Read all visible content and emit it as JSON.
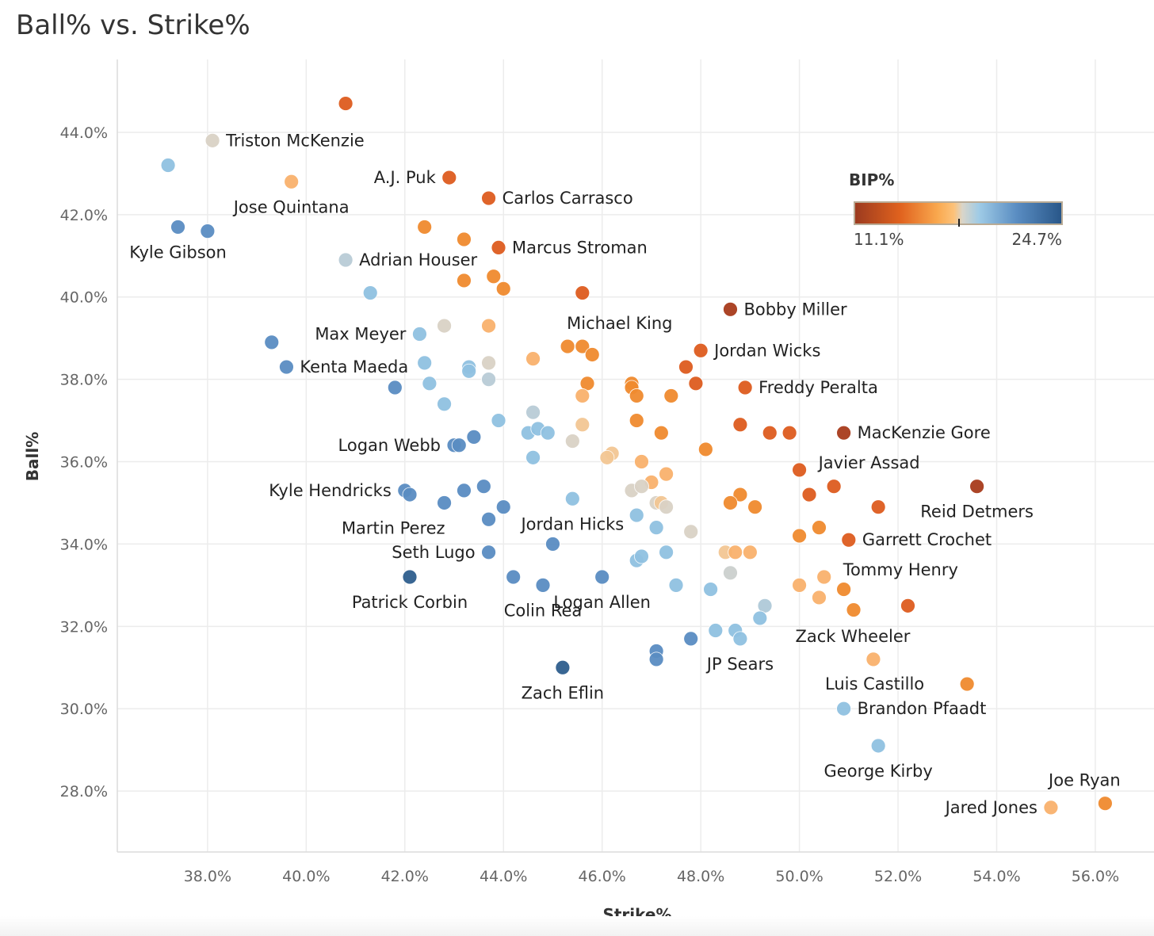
{
  "chart_data": {
    "type": "scatter",
    "title": "Ball% vs. Strike%",
    "xlabel": "Strike%",
    "ylabel": "Ball%",
    "xlim": [
      36.17,
      57.19
    ],
    "ylim": [
      26.52,
      45.77
    ],
    "xticks": [
      38,
      40,
      42,
      44,
      46,
      48,
      50,
      52,
      54,
      56
    ],
    "xtick_labels": [
      "38.0%",
      "40.0%",
      "42.0%",
      "44.0%",
      "46.0%",
      "48.0%",
      "50.0%",
      "52.0%",
      "54.0%",
      "56.0%"
    ],
    "yticks": [
      28,
      30,
      32,
      34,
      36,
      38,
      40,
      42,
      44
    ],
    "ytick_labels": [
      "28.0%",
      "30.0%",
      "32.0%",
      "34.0%",
      "36.0%",
      "38.0%",
      "40.0%",
      "42.0%",
      "44.0%"
    ],
    "grid": true,
    "color_legend": {
      "title": "BIP%",
      "min": 11.1,
      "max": 24.7,
      "min_label": "11.1%",
      "max_label": "24.7%",
      "placement": "top-right",
      "colors": [
        "#9b3a1f",
        "#dd5a1e",
        "#f08a2e",
        "#f9b06a",
        "#d8d3c9",
        "#92c3e2",
        "#5b8ec3",
        "#285688"
      ]
    },
    "points": [
      {
        "x": 40.8,
        "y": 44.7,
        "bip": 13.6
      },
      {
        "x": 38.1,
        "y": 43.8,
        "bip": 18.0,
        "label": "Triston McKenzie",
        "label_pos": "right"
      },
      {
        "x": 37.2,
        "y": 43.2,
        "bip": 19.6
      },
      {
        "x": 39.7,
        "y": 42.8,
        "bip": 16.6,
        "label": "Jose Quintana",
        "label_pos": "below"
      },
      {
        "x": 42.9,
        "y": 42.9,
        "bip": 13.6,
        "label": "A.J. Puk",
        "label_pos": "left"
      },
      {
        "x": 43.7,
        "y": 42.4,
        "bip": 13.6,
        "label": "Carlos Carrasco",
        "label_pos": "right"
      },
      {
        "x": 37.4,
        "y": 41.7,
        "bip": 21.6,
        "label": "Kyle Gibson",
        "label_pos": "below"
      },
      {
        "x": 38.0,
        "y": 41.6,
        "bip": 21.6
      },
      {
        "x": 42.4,
        "y": 41.7,
        "bip": 15.2
      },
      {
        "x": 43.2,
        "y": 41.4,
        "bip": 15.2
      },
      {
        "x": 43.9,
        "y": 41.2,
        "bip": 13.6,
        "label": "Marcus Stroman",
        "label_pos": "right"
      },
      {
        "x": 40.8,
        "y": 40.9,
        "bip": 18.7,
        "label": "Adrian Houser",
        "label_pos": "right"
      },
      {
        "x": 43.2,
        "y": 40.4,
        "bip": 15.2
      },
      {
        "x": 43.8,
        "y": 40.5,
        "bip": 15.2
      },
      {
        "x": 44.0,
        "y": 40.2,
        "bip": 15.2
      },
      {
        "x": 45.6,
        "y": 40.1,
        "bip": 13.6
      },
      {
        "x": 41.3,
        "y": 40.1,
        "bip": 19.6
      },
      {
        "x": 48.6,
        "y": 39.7,
        "bip": 12.0,
        "label": "Bobby Miller",
        "label_pos": "right"
      },
      {
        "x": 42.8,
        "y": 39.3,
        "bip": 18.0
      },
      {
        "x": 43.7,
        "y": 39.3,
        "bip": 16.6
      },
      {
        "x": 42.3,
        "y": 39.1,
        "bip": 19.6,
        "label": "Max Meyer",
        "label_pos": "left"
      },
      {
        "x": 39.3,
        "y": 38.9,
        "bip": 21.6
      },
      {
        "x": 45.3,
        "y": 38.8,
        "bip": 15.2
      },
      {
        "x": 45.6,
        "y": 38.8,
        "bip": 15.2,
        "label": "Michael King",
        "label_pos": "above-right"
      },
      {
        "x": 45.8,
        "y": 38.6,
        "bip": 15.2
      },
      {
        "x": 48.0,
        "y": 38.7,
        "bip": 13.6,
        "label": "Jordan Wicks",
        "label_pos": "right"
      },
      {
        "x": 39.6,
        "y": 38.3,
        "bip": 21.6,
        "label": "Kenta Maeda",
        "label_pos": "right"
      },
      {
        "x": 42.4,
        "y": 38.4,
        "bip": 19.6
      },
      {
        "x": 43.3,
        "y": 38.3,
        "bip": 19.6
      },
      {
        "x": 43.3,
        "y": 38.2,
        "bip": 19.6
      },
      {
        "x": 43.7,
        "y": 38.4,
        "bip": 18.0
      },
      {
        "x": 44.6,
        "y": 38.5,
        "bip": 16.6
      },
      {
        "x": 47.7,
        "y": 38.3,
        "bip": 13.6
      },
      {
        "x": 47.9,
        "y": 37.9,
        "bip": 13.6
      },
      {
        "x": 48.9,
        "y": 37.8,
        "bip": 13.6,
        "label": "Freddy Peralta",
        "label_pos": "right"
      },
      {
        "x": 41.8,
        "y": 37.8,
        "bip": 21.6
      },
      {
        "x": 42.5,
        "y": 37.9,
        "bip": 19.6
      },
      {
        "x": 43.7,
        "y": 38.0,
        "bip": 18.7
      },
      {
        "x": 45.7,
        "y": 37.9,
        "bip": 15.2
      },
      {
        "x": 46.6,
        "y": 37.9,
        "bip": 15.2
      },
      {
        "x": 46.6,
        "y": 37.8,
        "bip": 15.2
      },
      {
        "x": 46.7,
        "y": 37.6,
        "bip": 15.2
      },
      {
        "x": 45.6,
        "y": 37.6,
        "bip": 16.6
      },
      {
        "x": 47.4,
        "y": 37.6,
        "bip": 15.2
      },
      {
        "x": 42.8,
        "y": 37.4,
        "bip": 19.6
      },
      {
        "x": 44.6,
        "y": 37.2,
        "bip": 18.7
      },
      {
        "x": 46.7,
        "y": 37.0,
        "bip": 15.2
      },
      {
        "x": 47.2,
        "y": 36.7,
        "bip": 15.2
      },
      {
        "x": 48.8,
        "y": 36.9,
        "bip": 13.6
      },
      {
        "x": 49.4,
        "y": 36.7,
        "bip": 13.6
      },
      {
        "x": 49.8,
        "y": 36.7,
        "bip": 13.6
      },
      {
        "x": 50.9,
        "y": 36.7,
        "bip": 12.0,
        "label": "MacKenzie Gore",
        "label_pos": "right"
      },
      {
        "x": 43.9,
        "y": 37.0,
        "bip": 19.6
      },
      {
        "x": 44.5,
        "y": 36.7,
        "bip": 19.6
      },
      {
        "x": 44.7,
        "y": 36.8,
        "bip": 19.6
      },
      {
        "x": 44.9,
        "y": 36.7,
        "bip": 19.6
      },
      {
        "x": 45.6,
        "y": 36.9,
        "bip": 17.4
      },
      {
        "x": 43.4,
        "y": 36.6,
        "bip": 21.6
      },
      {
        "x": 43.0,
        "y": 36.4,
        "bip": 21.6,
        "label": "Logan Webb",
        "label_pos": "left"
      },
      {
        "x": 43.1,
        "y": 36.4,
        "bip": 21.6
      },
      {
        "x": 45.4,
        "y": 36.5,
        "bip": 18.0
      },
      {
        "x": 44.6,
        "y": 36.1,
        "bip": 19.6
      },
      {
        "x": 46.2,
        "y": 36.2,
        "bip": 17.4
      },
      {
        "x": 46.1,
        "y": 36.1,
        "bip": 17.4
      },
      {
        "x": 46.8,
        "y": 36.0,
        "bip": 16.6
      },
      {
        "x": 48.1,
        "y": 36.3,
        "bip": 15.2
      },
      {
        "x": 50.0,
        "y": 35.8,
        "bip": 13.6,
        "label": "Javier Assad",
        "label_pos": "right-up"
      },
      {
        "x": 53.6,
        "y": 35.4,
        "bip": 12.0,
        "label": "Reid Detmers",
        "label_pos": "below"
      },
      {
        "x": 50.7,
        "y": 35.4,
        "bip": 13.6
      },
      {
        "x": 50.2,
        "y": 35.2,
        "bip": 13.6
      },
      {
        "x": 51.6,
        "y": 34.9,
        "bip": 13.6
      },
      {
        "x": 47.3,
        "y": 35.7,
        "bip": 16.6
      },
      {
        "x": 47.0,
        "y": 35.5,
        "bip": 16.6
      },
      {
        "x": 46.6,
        "y": 35.3,
        "bip": 18.0
      },
      {
        "x": 46.8,
        "y": 35.4,
        "bip": 18.0
      },
      {
        "x": 47.1,
        "y": 35.0,
        "bip": 18.0
      },
      {
        "x": 47.2,
        "y": 35.0,
        "bip": 17.4
      },
      {
        "x": 47.3,
        "y": 34.9,
        "bip": 18.0
      },
      {
        "x": 48.8,
        "y": 35.2,
        "bip": 15.2
      },
      {
        "x": 48.6,
        "y": 35.0,
        "bip": 15.2
      },
      {
        "x": 49.1,
        "y": 34.9,
        "bip": 15.2
      },
      {
        "x": 42.0,
        "y": 35.3,
        "bip": 21.6,
        "label": "Kyle Hendricks",
        "label_pos": "left"
      },
      {
        "x": 42.1,
        "y": 35.2,
        "bip": 21.6
      },
      {
        "x": 42.8,
        "y": 35.0,
        "bip": 21.6
      },
      {
        "x": 43.2,
        "y": 35.3,
        "bip": 21.6
      },
      {
        "x": 43.6,
        "y": 35.4,
        "bip": 21.6
      },
      {
        "x": 44.0,
        "y": 34.9,
        "bip": 21.6
      },
      {
        "x": 45.4,
        "y": 35.1,
        "bip": 19.6,
        "label": "Jordan Hicks",
        "label_pos": "below"
      },
      {
        "x": 43.7,
        "y": 34.6,
        "bip": 21.6,
        "label": "Martin Perez",
        "label_pos": "left-down"
      },
      {
        "x": 46.7,
        "y": 34.7,
        "bip": 19.6
      },
      {
        "x": 47.1,
        "y": 34.4,
        "bip": 19.6
      },
      {
        "x": 47.8,
        "y": 34.3,
        "bip": 18.0
      },
      {
        "x": 45.0,
        "y": 34.0,
        "bip": 21.6
      },
      {
        "x": 43.7,
        "y": 33.8,
        "bip": 21.6,
        "label": "Seth Lugo",
        "label_pos": "left"
      },
      {
        "x": 50.0,
        "y": 34.2,
        "bip": 15.2
      },
      {
        "x": 50.4,
        "y": 34.4,
        "bip": 15.2
      },
      {
        "x": 51.0,
        "y": 34.1,
        "bip": 13.6,
        "label": "Garrett Crochet",
        "label_pos": "right"
      },
      {
        "x": 46.7,
        "y": 33.6,
        "bip": 19.6
      },
      {
        "x": 46.8,
        "y": 33.7,
        "bip": 19.6
      },
      {
        "x": 47.3,
        "y": 33.8,
        "bip": 19.6
      },
      {
        "x": 48.5,
        "y": 33.8,
        "bip": 17.4
      },
      {
        "x": 48.7,
        "y": 33.8,
        "bip": 16.6
      },
      {
        "x": 49.0,
        "y": 33.8,
        "bip": 16.6
      },
      {
        "x": 48.6,
        "y": 33.3,
        "bip": 18.3
      },
      {
        "x": 42.1,
        "y": 33.2,
        "bip": 23.8,
        "label": "Patrick Corbin",
        "label_pos": "below"
      },
      {
        "x": 44.2,
        "y": 33.2,
        "bip": 21.6
      },
      {
        "x": 44.8,
        "y": 33.0,
        "bip": 21.6,
        "label": "Colin Rea",
        "label_pos": "below"
      },
      {
        "x": 46.0,
        "y": 33.2,
        "bip": 21.6,
        "label": "Logan Allen",
        "label_pos": "below"
      },
      {
        "x": 47.5,
        "y": 33.0,
        "bip": 19.6
      },
      {
        "x": 48.2,
        "y": 32.9,
        "bip": 19.6
      },
      {
        "x": 50.5,
        "y": 33.2,
        "bip": 16.6,
        "label": "Tommy Henry",
        "label_pos": "right-up"
      },
      {
        "x": 50.0,
        "y": 33.0,
        "bip": 16.6
      },
      {
        "x": 50.4,
        "y": 32.7,
        "bip": 16.6
      },
      {
        "x": 50.9,
        "y": 32.9,
        "bip": 15.2
      },
      {
        "x": 51.1,
        "y": 32.4,
        "bip": 15.2
      },
      {
        "x": 52.2,
        "y": 32.5,
        "bip": 13.6
      },
      {
        "x": 49.3,
        "y": 32.5,
        "bip": 18.9
      },
      {
        "x": 49.2,
        "y": 32.2,
        "bip": 19.6
      },
      {
        "x": 47.8,
        "y": 31.7,
        "bip": 21.6
      },
      {
        "x": 48.3,
        "y": 31.9,
        "bip": 19.6
      },
      {
        "x": 48.7,
        "y": 31.9,
        "bip": 19.6
      },
      {
        "x": 48.8,
        "y": 31.7,
        "bip": 19.6,
        "label": "JP Sears",
        "label_pos": "below"
      },
      {
        "x": 47.1,
        "y": 31.4,
        "bip": 21.6
      },
      {
        "x": 47.1,
        "y": 31.2,
        "bip": 21.6
      },
      {
        "x": 45.2,
        "y": 31.0,
        "bip": 23.8,
        "label": "Zach Eflin",
        "label_pos": "below"
      },
      {
        "x": 51.5,
        "y": 31.2,
        "bip": 16.6,
        "label": "Zack Wheeler",
        "label_pos": "above-left"
      },
      {
        "x": 53.4,
        "y": 30.6,
        "bip": 15.2,
        "label": "Luis Castillo",
        "label_pos": "left-far"
      },
      {
        "x": 50.9,
        "y": 30.0,
        "bip": 19.6,
        "label": "Brandon Pfaadt",
        "label_pos": "right"
      },
      {
        "x": 51.6,
        "y": 29.1,
        "bip": 19.6,
        "label": "George Kirby",
        "label_pos": "below"
      },
      {
        "x": 56.2,
        "y": 27.7,
        "bip": 15.2,
        "label": "Joe Ryan",
        "label_pos": "above-left"
      },
      {
        "x": 55.1,
        "y": 27.6,
        "bip": 16.6,
        "label": "Jared Jones",
        "label_pos": "left"
      }
    ]
  }
}
